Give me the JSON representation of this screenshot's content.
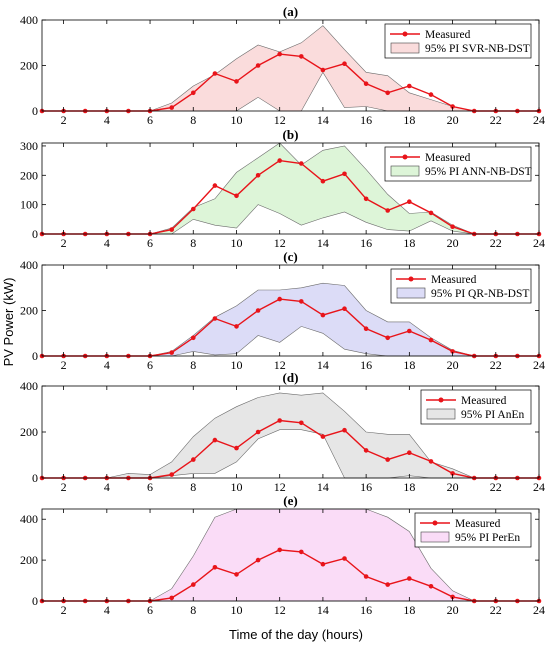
{
  "figure": {
    "ylabel": "PV Power (kW)",
    "xlabel": "Time of the day (hours)",
    "colors": {
      "measured": "#e8141a",
      "axes": "#000000"
    }
  },
  "chart_data": [
    {
      "type": "line",
      "panel": "(a)",
      "x": [
        1,
        2,
        3,
        4,
        5,
        6,
        7,
        8,
        9,
        10,
        11,
        12,
        13,
        14,
        15,
        16,
        17,
        18,
        19,
        20,
        21,
        22,
        23,
        24
      ],
      "xlim": [
        1,
        24
      ],
      "xticks": [
        2,
        4,
        6,
        8,
        10,
        12,
        14,
        16,
        18,
        20,
        22,
        24
      ],
      "ylim": [
        0,
        400
      ],
      "yticks": [
        0,
        200,
        400
      ],
      "band_color": "#fadcdc",
      "legend": {
        "placement": "top-right",
        "entries": [
          "Measured",
          "95% PI SVR-NB-DST"
        ]
      },
      "series": [
        {
          "name": "Measured",
          "values": [
            0,
            0,
            0,
            0,
            0,
            0,
            15,
            80,
            165,
            130,
            200,
            250,
            240,
            180,
            208,
            120,
            80,
            110,
            72,
            20,
            0,
            0,
            0,
            0
          ]
        },
        {
          "name": "95% PI SVR-NB-DST",
          "upper": [
            0,
            0,
            0,
            0,
            0,
            0,
            35,
            110,
            160,
            230,
            290,
            260,
            300,
            375,
            270,
            170,
            155,
            80,
            50,
            20,
            0,
            0,
            0,
            0
          ],
          "lower": [
            0,
            0,
            0,
            0,
            0,
            0,
            0,
            0,
            0,
            0,
            60,
            0,
            0,
            170,
            15,
            20,
            0,
            0,
            0,
            0,
            0,
            0,
            0,
            0
          ]
        }
      ]
    },
    {
      "type": "line",
      "panel": "(b)",
      "x": [
        1,
        2,
        3,
        4,
        5,
        6,
        7,
        8,
        9,
        10,
        11,
        12,
        13,
        14,
        15,
        16,
        17,
        18,
        19,
        20,
        21,
        22,
        23,
        24
      ],
      "xlim": [
        1,
        24
      ],
      "xticks": [
        2,
        4,
        6,
        8,
        10,
        12,
        14,
        16,
        18,
        20,
        22,
        24
      ],
      "ylim": [
        0,
        310
      ],
      "yticks": [
        0,
        100,
        200,
        300
      ],
      "band_color": "#ddf5d8",
      "legend": {
        "placement": "top-right",
        "entries": [
          "Measured",
          "95% PI ANN-NB-DST"
        ]
      },
      "series": [
        {
          "name": "Measured",
          "values": [
            0,
            0,
            0,
            0,
            0,
            0,
            15,
            85,
            165,
            130,
            200,
            250,
            240,
            180,
            205,
            120,
            80,
            110,
            72,
            25,
            0,
            0,
            0,
            0
          ]
        },
        {
          "name": "95% PI ANN-NB-DST",
          "upper": [
            0,
            0,
            0,
            0,
            0,
            0,
            20,
            90,
            120,
            210,
            260,
            310,
            235,
            285,
            300,
            220,
            135,
            70,
            75,
            30,
            0,
            0,
            0,
            0
          ],
          "lower": [
            0,
            0,
            0,
            0,
            0,
            0,
            0,
            50,
            30,
            20,
            100,
            70,
            30,
            55,
            75,
            40,
            15,
            10,
            45,
            10,
            0,
            0,
            0,
            0
          ]
        }
      ]
    },
    {
      "type": "line",
      "panel": "(c)",
      "x": [
        1,
        2,
        3,
        4,
        5,
        6,
        7,
        8,
        9,
        10,
        11,
        12,
        13,
        14,
        15,
        16,
        17,
        18,
        19,
        20,
        21,
        22,
        23,
        24
      ],
      "xlim": [
        1,
        24
      ],
      "xticks": [
        2,
        4,
        6,
        8,
        10,
        12,
        14,
        16,
        18,
        20,
        22,
        24
      ],
      "ylim": [
        0,
        400
      ],
      "yticks": [
        0,
        200,
        400
      ],
      "band_color": "#dcdcf7",
      "legend": {
        "placement": "top-right",
        "entries": [
          "Measured",
          "95% PI QR-NB-DST"
        ]
      },
      "series": [
        {
          "name": "Measured",
          "values": [
            0,
            0,
            0,
            0,
            0,
            0,
            15,
            80,
            165,
            130,
            200,
            250,
            240,
            180,
            208,
            120,
            80,
            110,
            70,
            20,
            0,
            0,
            0,
            0
          ]
        },
        {
          "name": "95% PI QR-NB-DST",
          "upper": [
            0,
            0,
            0,
            0,
            0,
            0,
            20,
            90,
            170,
            220,
            290,
            290,
            300,
            320,
            310,
            200,
            150,
            150,
            80,
            25,
            0,
            0,
            0,
            0
          ],
          "lower": [
            0,
            0,
            0,
            0,
            0,
            0,
            0,
            20,
            5,
            10,
            90,
            60,
            130,
            100,
            30,
            10,
            0,
            0,
            0,
            0,
            0,
            0,
            0,
            0
          ]
        }
      ]
    },
    {
      "type": "line",
      "panel": "(d)",
      "x": [
        1,
        2,
        3,
        4,
        5,
        6,
        7,
        8,
        9,
        10,
        11,
        12,
        13,
        14,
        15,
        16,
        17,
        18,
        19,
        20,
        21,
        22,
        23,
        24
      ],
      "xlim": [
        1,
        24
      ],
      "xticks": [
        2,
        4,
        6,
        8,
        10,
        12,
        14,
        16,
        18,
        20,
        22,
        24
      ],
      "ylim": [
        0,
        400
      ],
      "yticks": [
        0,
        200,
        400
      ],
      "band_color": "#e6e6e6",
      "legend": {
        "placement": "top-right",
        "entries": [
          "Measured",
          "95% PI AnEn"
        ]
      },
      "series": [
        {
          "name": "Measured",
          "values": [
            0,
            0,
            0,
            0,
            0,
            0,
            15,
            80,
            165,
            130,
            200,
            250,
            240,
            180,
            208,
            120,
            80,
            110,
            72,
            20,
            0,
            0,
            0,
            0
          ]
        },
        {
          "name": "95% PI AnEn",
          "upper": [
            0,
            0,
            0,
            0,
            20,
            15,
            70,
            180,
            260,
            310,
            350,
            370,
            360,
            370,
            290,
            200,
            190,
            190,
            70,
            40,
            0,
            0,
            0,
            0
          ],
          "lower": [
            0,
            0,
            0,
            0,
            0,
            0,
            10,
            20,
            20,
            70,
            170,
            210,
            210,
            190,
            0,
            0,
            0,
            10,
            0,
            0,
            0,
            0,
            0,
            0
          ]
        }
      ]
    },
    {
      "type": "line",
      "panel": "(e)",
      "x": [
        1,
        2,
        3,
        4,
        5,
        6,
        7,
        8,
        9,
        10,
        11,
        12,
        13,
        14,
        15,
        16,
        17,
        18,
        19,
        20,
        21,
        22,
        23,
        24
      ],
      "xlim": [
        1,
        24
      ],
      "xticks": [
        2,
        4,
        6,
        8,
        10,
        12,
        14,
        16,
        18,
        20,
        22,
        24
      ],
      "ylim": [
        0,
        450
      ],
      "yticks": [
        0,
        200,
        400
      ],
      "band_color": "#fadcf7",
      "legend": {
        "placement": "top-right",
        "entries": [
          "Measured",
          "95% PI PerEn"
        ]
      },
      "series": [
        {
          "name": "Measured",
          "values": [
            0,
            0,
            0,
            0,
            0,
            0,
            15,
            80,
            165,
            130,
            200,
            250,
            240,
            180,
            208,
            120,
            80,
            110,
            72,
            20,
            0,
            0,
            0,
            0
          ]
        },
        {
          "name": "95% PI PerEn",
          "upper": [
            0,
            0,
            0,
            0,
            0,
            0,
            60,
            220,
            410,
            450,
            450,
            450,
            450,
            450,
            450,
            450,
            410,
            340,
            160,
            50,
            0,
            0,
            0,
            0
          ],
          "lower": [
            0,
            0,
            0,
            0,
            0,
            0,
            0,
            0,
            0,
            0,
            0,
            0,
            0,
            0,
            0,
            0,
            0,
            0,
            0,
            0,
            0,
            0,
            0,
            0
          ]
        }
      ]
    }
  ]
}
